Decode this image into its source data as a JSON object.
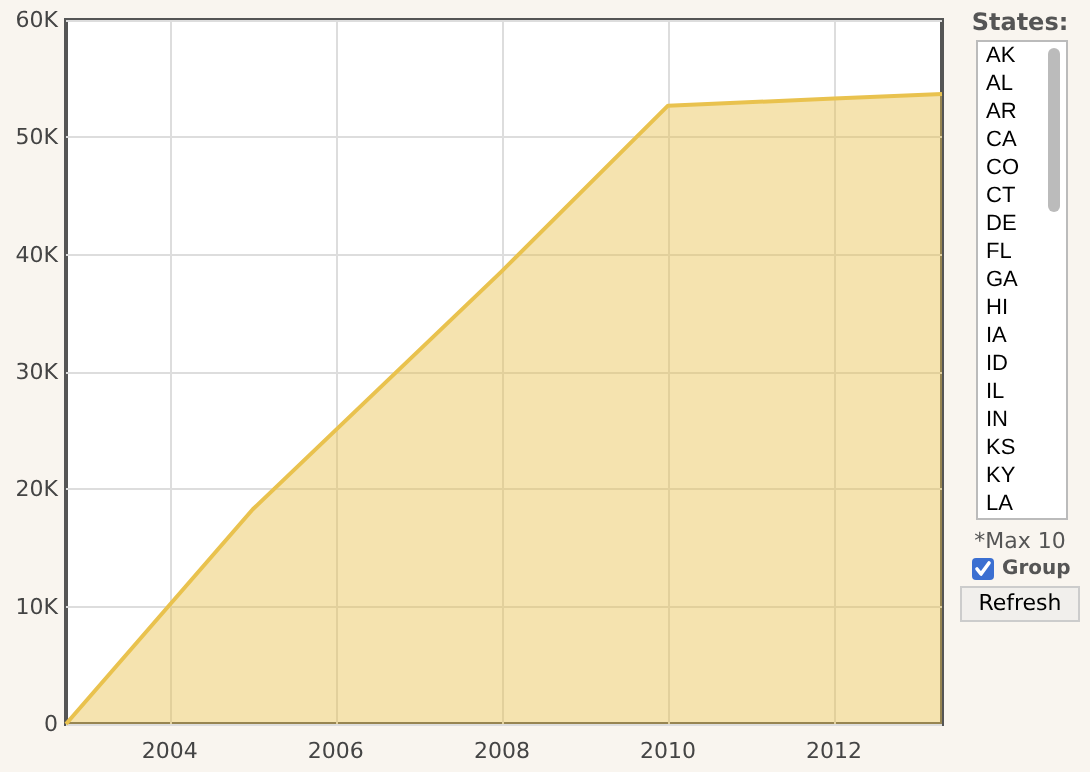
{
  "chart_data": {
    "type": "area",
    "x": [
      2002.75,
      2005,
      2008,
      2010,
      2012,
      2013.3
    ],
    "series": [
      {
        "color": "#e9c24e",
        "values": [
          0,
          18300,
          38600,
          52700,
          53300,
          53700
        ]
      }
    ],
    "xlim": [
      2002.75,
      2013.3
    ],
    "xticks": [
      2004,
      2006,
      2008,
      2010,
      2012
    ],
    "ylim": [
      0,
      60000
    ],
    "yticks": [
      0,
      {
        "value": 10000,
        "label": "10K"
      },
      {
        "value": 20000,
        "label": "20K"
      },
      {
        "value": 30000,
        "label": "30K"
      },
      {
        "value": 40000,
        "label": "40K"
      },
      {
        "value": 50000,
        "label": "50K"
      },
      {
        "value": 60000,
        "label": "60K"
      }
    ],
    "grid": true,
    "marker": "none",
    "annotations": [
      "States:",
      "AK",
      "AL",
      "AR",
      "CA",
      "CO",
      "CT",
      "DE",
      "FL",
      "GA",
      "HI",
      "IA",
      "ID",
      "IL",
      "IN",
      "KS",
      "KY",
      "LA",
      "*Max 10",
      "Group",
      "Refresh"
    ]
  }
}
